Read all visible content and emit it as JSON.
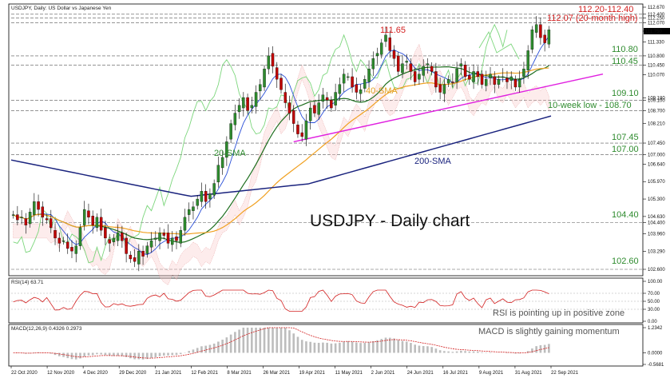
{
  "header": {
    "title": "USDJPY, Daily:  US Dollar vs Japanese Yen",
    "rsi_label": "RSI(14) 63.71",
    "macd_label": "MACD(12,26,9) 0.4326 0.2973"
  },
  "main_title": "USDJPY - Daily chart",
  "levels": {
    "top_range": "112.20-112.40",
    "high_20m": "112.07 (20-month high)",
    "peak": "111.65",
    "l110_80": "110.80",
    "l110_45": "110.45",
    "l109_10": "109.10",
    "low_10w": "10-week low - 108.70",
    "l107_45": "107.45",
    "l107_00": "107.00",
    "l104_40": "104.40",
    "l102_60": "102.60"
  },
  "sma_labels": {
    "sma20": "20-SMA",
    "sma40": "40-SMA",
    "sma200": "200-SMA"
  },
  "comments": {
    "rsi": "RSI is pointing up in positive zone",
    "macd": "MACD is slightly gaining momentum"
  },
  "colors": {
    "bull": "#2e8b2e",
    "bear": "#c00000",
    "sma20": "#1e6e1e",
    "sma40": "#f0a020",
    "sma200": "#1a237e",
    "trend": "#e020e0",
    "level_text": "#2e8b2e",
    "level_red": "#d32020",
    "rsi": "#d32020",
    "macd_hist": "#bdbdbd",
    "macd_signal": "#d32020"
  },
  "chart_data": {
    "type": "candlestick",
    "price_axis": {
      "ticks": [
        "112.670",
        "112.400",
        "112.250",
        "112.070",
        "111.750",
        "111.330",
        "110.800",
        "110.450",
        "110.070",
        "109.180",
        "109.100",
        "108.700",
        "108.210",
        "107.450",
        "107.000",
        "106.640",
        "105.970",
        "105.300",
        "104.630",
        "104.400",
        "103.960",
        "103.290",
        "102.600"
      ],
      "last_price": "111.750"
    },
    "rsi_axis": {
      "ticks": [
        "100.00",
        "70.00",
        "50.00",
        "30.00",
        "0.00"
      ]
    },
    "macd_axis": {
      "ticks": [
        "1.2342",
        "0.0000",
        "-0.5681"
      ]
    },
    "x_labels": [
      "22 Oct 2020",
      "12 Nov 2020",
      "4 Dec 2020",
      "29 Dec 2020",
      "21 Jan 2021",
      "12 Feb 2021",
      "8 Mar 2021",
      "26 Mar 2021",
      "19 Apr 2021",
      "11 May 2021",
      "2 Jun 2021",
      "24 Jun 2021",
      "16 Jul 2021",
      "9 Aug 2021",
      "31 Aug 2021",
      "22 Sep 2021"
    ],
    "closes": [
      104.7,
      104.5,
      104.6,
      104.3,
      104.8,
      105.2,
      104.9,
      104.6,
      104.5,
      104.2,
      103.8,
      103.6,
      103.7,
      103.4,
      103.3,
      103.5,
      104.2,
      104.9,
      104.6,
      104.3,
      104.6,
      104.1,
      103.8,
      103.6,
      103.8,
      104.0,
      103.7,
      103.2,
      103.0,
      102.9,
      103.3,
      103.1,
      103.5,
      103.7,
      103.8,
      104.0,
      103.9,
      103.6,
      103.8,
      103.7,
      104.1,
      104.6,
      104.9,
      105.0,
      105.3,
      105.6,
      105.2,
      105.5,
      105.9,
      106.6,
      106.9,
      107.5,
      108.2,
      108.6,
      108.9,
      109.2,
      108.7,
      108.9,
      109.4,
      109.7,
      110.3,
      110.8,
      110.4,
      109.9,
      109.5,
      109.0,
      108.6,
      108.2,
      107.8,
      107.7,
      108.3,
      108.8,
      108.6,
      109.0,
      109.3,
      109.1,
      108.8,
      109.4,
      109.7,
      110.1,
      110.0,
      109.6,
      109.4,
      109.5,
      109.9,
      110.3,
      110.7,
      110.9,
      111.3,
      111.6,
      111.0,
      110.7,
      110.2,
      110.5,
      110.6,
      110.2,
      109.8,
      110.1,
      110.4,
      110.5,
      110.2,
      109.6,
      109.4,
      109.7,
      109.9,
      109.8,
      110.3,
      110.5,
      110.0,
      109.9,
      110.2,
      110.0,
      109.7,
      109.9,
      110.1,
      109.7,
      109.9,
      110.0,
      109.8,
      110.0,
      109.6,
      109.9,
      110.3,
      111.0,
      111.8,
      112.0,
      111.5,
      111.3,
      111.8
    ]
  }
}
